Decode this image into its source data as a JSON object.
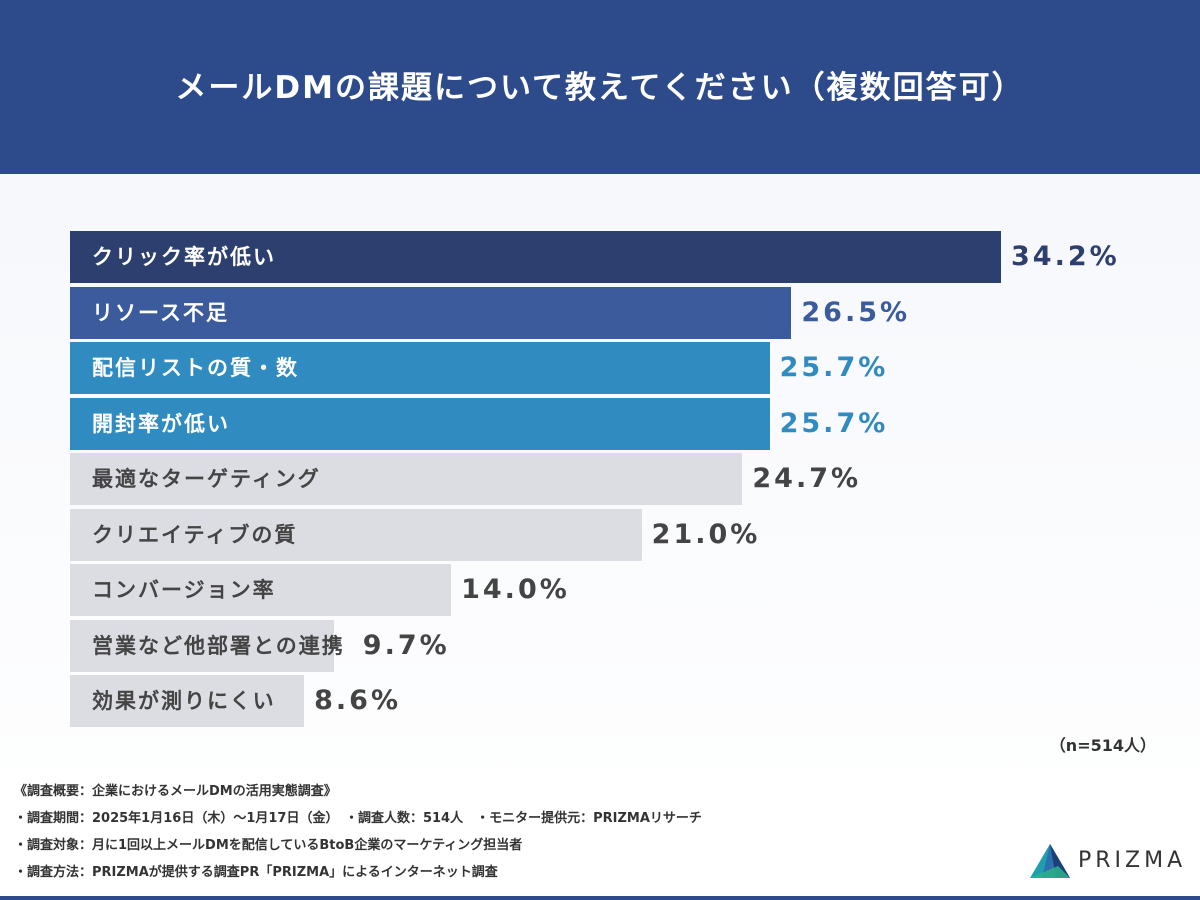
{
  "header": {
    "title": "メールDMの課題について教えてください（複数回答可）"
  },
  "chart_data": {
    "type": "bar",
    "orientation": "horizontal",
    "categories": [
      "クリック率が低い",
      "リソース不足",
      "配信リストの質・数",
      "開封率が低い",
      "最適なターゲティング",
      "クリエイティブの質",
      "コンバージョン率",
      "営業など他部署との連携",
      "効果が測りにくい"
    ],
    "values": [
      34.2,
      26.5,
      25.7,
      25.7,
      24.7,
      21.0,
      14.0,
      9.7,
      8.6
    ],
    "value_labels": [
      "34.2%",
      "26.5%",
      "25.7%",
      "25.7%",
      "24.7%",
      "21.0%",
      "14.0%",
      "9.7%",
      "8.6%"
    ],
    "bar_colors": [
      "#2d3f6e",
      "#3b5b9c",
      "#2f8bc0",
      "#2f8bc0",
      "#dcdde3",
      "#dcdde3",
      "#dcdde3",
      "#dcdde3",
      "#dcdde3"
    ],
    "label_colors": [
      "#ffffff",
      "#ffffff",
      "#ffffff",
      "#ffffff",
      "#444444",
      "#444444",
      "#444444",
      "#444444",
      "#444444"
    ],
    "value_colors": [
      "#2d3f6e",
      "#3b5b9c",
      "#2f8bc0",
      "#2f8bc0",
      "#444444",
      "#444444",
      "#444444",
      "#444444",
      "#444444"
    ],
    "xlim": [
      0,
      34.2
    ],
    "note": "（n=514人）"
  },
  "footer": {
    "lines": [
      "《調査概要：企業におけるメールDMの活用実態調査》",
      "・調査期間：2025年1月16日（木）～1月17日（金）　・調査人数：514人　・モニター提供元：PRIZMAリサーチ",
      "・調査対象：月に1回以上メールDMを配信しているBtoB企業のマーケティング担当者",
      "・調査方法：PRIZMAが提供する調査PR「PRIZMA」によるインターネット調査"
    ],
    "logo_text": "PRIZMA"
  }
}
